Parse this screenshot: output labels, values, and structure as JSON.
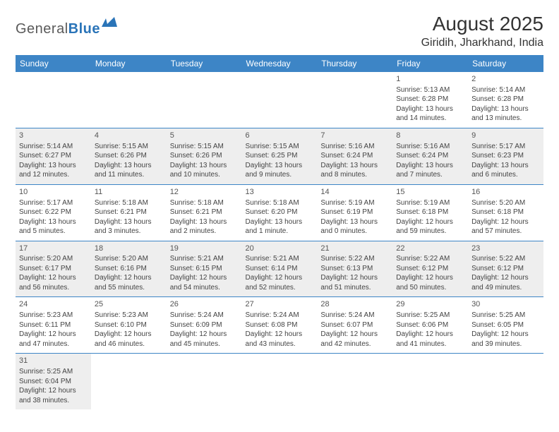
{
  "logo": {
    "text_gray": "General",
    "text_blue": "Blue"
  },
  "title": {
    "month": "August 2025",
    "location": "Giridih, Jharkhand, India"
  },
  "colors": {
    "header_bg": "#3d85c6",
    "header_text": "#ffffff",
    "shaded_bg": "#eeeeee",
    "border": "#3d85c6",
    "logo_gray": "#5a5a5a",
    "logo_blue": "#2a74b8"
  },
  "day_headers": [
    "Sunday",
    "Monday",
    "Tuesday",
    "Wednesday",
    "Thursday",
    "Friday",
    "Saturday"
  ],
  "weeks": [
    {
      "shaded": false,
      "days": [
        null,
        null,
        null,
        null,
        null,
        {
          "n": "1",
          "sr": "Sunrise: 5:13 AM",
          "ss": "Sunset: 6:28 PM",
          "d1": "Daylight: 13 hours",
          "d2": "and 14 minutes."
        },
        {
          "n": "2",
          "sr": "Sunrise: 5:14 AM",
          "ss": "Sunset: 6:28 PM",
          "d1": "Daylight: 13 hours",
          "d2": "and 13 minutes."
        }
      ]
    },
    {
      "shaded": true,
      "days": [
        {
          "n": "3",
          "sr": "Sunrise: 5:14 AM",
          "ss": "Sunset: 6:27 PM",
          "d1": "Daylight: 13 hours",
          "d2": "and 12 minutes."
        },
        {
          "n": "4",
          "sr": "Sunrise: 5:15 AM",
          "ss": "Sunset: 6:26 PM",
          "d1": "Daylight: 13 hours",
          "d2": "and 11 minutes."
        },
        {
          "n": "5",
          "sr": "Sunrise: 5:15 AM",
          "ss": "Sunset: 6:26 PM",
          "d1": "Daylight: 13 hours",
          "d2": "and 10 minutes."
        },
        {
          "n": "6",
          "sr": "Sunrise: 5:15 AM",
          "ss": "Sunset: 6:25 PM",
          "d1": "Daylight: 13 hours",
          "d2": "and 9 minutes."
        },
        {
          "n": "7",
          "sr": "Sunrise: 5:16 AM",
          "ss": "Sunset: 6:24 PM",
          "d1": "Daylight: 13 hours",
          "d2": "and 8 minutes."
        },
        {
          "n": "8",
          "sr": "Sunrise: 5:16 AM",
          "ss": "Sunset: 6:24 PM",
          "d1": "Daylight: 13 hours",
          "d2": "and 7 minutes."
        },
        {
          "n": "9",
          "sr": "Sunrise: 5:17 AM",
          "ss": "Sunset: 6:23 PM",
          "d1": "Daylight: 13 hours",
          "d2": "and 6 minutes."
        }
      ]
    },
    {
      "shaded": false,
      "days": [
        {
          "n": "10",
          "sr": "Sunrise: 5:17 AM",
          "ss": "Sunset: 6:22 PM",
          "d1": "Daylight: 13 hours",
          "d2": "and 5 minutes."
        },
        {
          "n": "11",
          "sr": "Sunrise: 5:18 AM",
          "ss": "Sunset: 6:21 PM",
          "d1": "Daylight: 13 hours",
          "d2": "and 3 minutes."
        },
        {
          "n": "12",
          "sr": "Sunrise: 5:18 AM",
          "ss": "Sunset: 6:21 PM",
          "d1": "Daylight: 13 hours",
          "d2": "and 2 minutes."
        },
        {
          "n": "13",
          "sr": "Sunrise: 5:18 AM",
          "ss": "Sunset: 6:20 PM",
          "d1": "Daylight: 13 hours",
          "d2": "and 1 minute."
        },
        {
          "n": "14",
          "sr": "Sunrise: 5:19 AM",
          "ss": "Sunset: 6:19 PM",
          "d1": "Daylight: 13 hours",
          "d2": "and 0 minutes."
        },
        {
          "n": "15",
          "sr": "Sunrise: 5:19 AM",
          "ss": "Sunset: 6:18 PM",
          "d1": "Daylight: 12 hours",
          "d2": "and 59 minutes."
        },
        {
          "n": "16",
          "sr": "Sunrise: 5:20 AM",
          "ss": "Sunset: 6:18 PM",
          "d1": "Daylight: 12 hours",
          "d2": "and 57 minutes."
        }
      ]
    },
    {
      "shaded": true,
      "days": [
        {
          "n": "17",
          "sr": "Sunrise: 5:20 AM",
          "ss": "Sunset: 6:17 PM",
          "d1": "Daylight: 12 hours",
          "d2": "and 56 minutes."
        },
        {
          "n": "18",
          "sr": "Sunrise: 5:20 AM",
          "ss": "Sunset: 6:16 PM",
          "d1": "Daylight: 12 hours",
          "d2": "and 55 minutes."
        },
        {
          "n": "19",
          "sr": "Sunrise: 5:21 AM",
          "ss": "Sunset: 6:15 PM",
          "d1": "Daylight: 12 hours",
          "d2": "and 54 minutes."
        },
        {
          "n": "20",
          "sr": "Sunrise: 5:21 AM",
          "ss": "Sunset: 6:14 PM",
          "d1": "Daylight: 12 hours",
          "d2": "and 52 minutes."
        },
        {
          "n": "21",
          "sr": "Sunrise: 5:22 AM",
          "ss": "Sunset: 6:13 PM",
          "d1": "Daylight: 12 hours",
          "d2": "and 51 minutes."
        },
        {
          "n": "22",
          "sr": "Sunrise: 5:22 AM",
          "ss": "Sunset: 6:12 PM",
          "d1": "Daylight: 12 hours",
          "d2": "and 50 minutes."
        },
        {
          "n": "23",
          "sr": "Sunrise: 5:22 AM",
          "ss": "Sunset: 6:12 PM",
          "d1": "Daylight: 12 hours",
          "d2": "and 49 minutes."
        }
      ]
    },
    {
      "shaded": false,
      "days": [
        {
          "n": "24",
          "sr": "Sunrise: 5:23 AM",
          "ss": "Sunset: 6:11 PM",
          "d1": "Daylight: 12 hours",
          "d2": "and 47 minutes."
        },
        {
          "n": "25",
          "sr": "Sunrise: 5:23 AM",
          "ss": "Sunset: 6:10 PM",
          "d1": "Daylight: 12 hours",
          "d2": "and 46 minutes."
        },
        {
          "n": "26",
          "sr": "Sunrise: 5:24 AM",
          "ss": "Sunset: 6:09 PM",
          "d1": "Daylight: 12 hours",
          "d2": "and 45 minutes."
        },
        {
          "n": "27",
          "sr": "Sunrise: 5:24 AM",
          "ss": "Sunset: 6:08 PM",
          "d1": "Daylight: 12 hours",
          "d2": "and 43 minutes."
        },
        {
          "n": "28",
          "sr": "Sunrise: 5:24 AM",
          "ss": "Sunset: 6:07 PM",
          "d1": "Daylight: 12 hours",
          "d2": "and 42 minutes."
        },
        {
          "n": "29",
          "sr": "Sunrise: 5:25 AM",
          "ss": "Sunset: 6:06 PM",
          "d1": "Daylight: 12 hours",
          "d2": "and 41 minutes."
        },
        {
          "n": "30",
          "sr": "Sunrise: 5:25 AM",
          "ss": "Sunset: 6:05 PM",
          "d1": "Daylight: 12 hours",
          "d2": "and 39 minutes."
        }
      ]
    },
    {
      "shaded": true,
      "days": [
        {
          "n": "31",
          "sr": "Sunrise: 5:25 AM",
          "ss": "Sunset: 6:04 PM",
          "d1": "Daylight: 12 hours",
          "d2": "and 38 minutes."
        },
        null,
        null,
        null,
        null,
        null,
        null
      ]
    }
  ]
}
